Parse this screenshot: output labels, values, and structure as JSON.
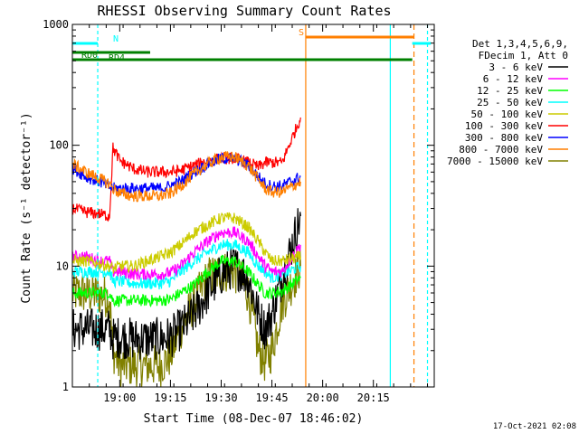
{
  "chart_data": {
    "type": "line",
    "title": "RHESSI Observing Summary Count Rates",
    "xlabel": "Start Time (08-Dec-07 18:46:02)",
    "ylabel": "Count Rate (s⁻¹ detector⁻¹)",
    "yscale": "log",
    "ylim": [
      1,
      1000
    ],
    "xlim_minutes": [
      0,
      107
    ],
    "x_ticks": [
      {
        "label": "19:00",
        "minutes": 14
      },
      {
        "label": "19:15",
        "minutes": 29
      },
      {
        "label": "19:30",
        "minutes": 44
      },
      {
        "label": "19:45",
        "minutes": 59
      },
      {
        "label": "20:00",
        "minutes": 74
      },
      {
        "label": "20:15",
        "minutes": 89
      }
    ],
    "y_ticks": [
      {
        "label": "1",
        "value": 1
      },
      {
        "label": "10",
        "value": 10
      },
      {
        "label": "100",
        "value": 100
      },
      {
        "label": "1000",
        "value": 1000
      }
    ],
    "legend_header": [
      "Det 1,3,4,5,6,9,",
      "FDecim 1, Att 0"
    ],
    "legend_position": "right",
    "series": [
      {
        "name": "3 - 6 keV",
        "color": "#000000",
        "x": [
          0,
          4,
          8,
          11,
          12,
          14,
          18,
          22,
          26,
          29,
          32,
          36,
          40,
          44,
          48,
          52,
          55,
          57,
          59,
          62,
          67.5
        ],
        "y": [
          3,
          3,
          3,
          3,
          2.5,
          2.6,
          2.5,
          2.5,
          2.5,
          2.6,
          3,
          4,
          6,
          8.5,
          10,
          8,
          4,
          3,
          4,
          8,
          26
        ]
      },
      {
        "name": "6 - 12 keV",
        "color": "#ff00ff",
        "x": [
          0,
          4,
          8,
          11,
          12,
          14,
          18,
          22,
          26,
          29,
          32,
          36,
          40,
          44,
          48,
          52,
          55,
          57,
          59,
          62,
          67.5
        ],
        "y": [
          12,
          12,
          11,
          11,
          9,
          9,
          8.6,
          8.6,
          8.6,
          8.8,
          10,
          13,
          16,
          19,
          19,
          16,
          12,
          10,
          9,
          9,
          15
        ]
      },
      {
        "name": "12 - 25 keV",
        "color": "#00ff00",
        "x": [
          0,
          4,
          8,
          11,
          12,
          14,
          18,
          22,
          26,
          29,
          32,
          36,
          40,
          44,
          48,
          52,
          55,
          57,
          59,
          62,
          67.5
        ],
        "y": [
          6,
          6,
          6,
          6,
          5.2,
          5.2,
          5.2,
          5.2,
          5.2,
          5.3,
          6,
          7,
          9,
          11,
          11,
          9,
          7,
          6,
          6,
          6.2,
          8
        ]
      },
      {
        "name": "25 - 50 keV",
        "color": "#00ffff",
        "x": [
          0,
          4,
          8,
          11,
          12,
          14,
          18,
          22,
          26,
          29,
          32,
          36,
          40,
          44,
          48,
          52,
          55,
          57,
          59,
          62,
          67.5
        ],
        "y": [
          9,
          9,
          9,
          9,
          7.5,
          7.5,
          7.2,
          7.2,
          7.2,
          7.5,
          9,
          11,
          13,
          15,
          15,
          13,
          10,
          9,
          8,
          8.5,
          10
        ]
      },
      {
        "name": "50 - 100 keV",
        "color": "#cccc00",
        "x": [
          0,
          4,
          8,
          11,
          12,
          14,
          18,
          22,
          26,
          29,
          32,
          36,
          40,
          44,
          48,
          52,
          55,
          57,
          59,
          62,
          67.5
        ],
        "y": [
          11,
          11,
          10.5,
          10,
          9.5,
          10,
          10,
          11,
          12,
          13,
          15,
          19,
          22,
          25,
          25,
          21,
          16,
          13,
          11,
          11,
          12
        ]
      },
      {
        "name": "100 - 300 keV",
        "color": "#ff0000",
        "x": [
          0,
          4,
          8,
          11,
          12,
          14,
          18,
          22,
          26,
          29,
          32,
          36,
          40,
          44,
          48,
          52,
          55,
          57,
          59,
          62,
          67.5
        ],
        "y": [
          30,
          28,
          27,
          26,
          95,
          75,
          64,
          60,
          60,
          60,
          62,
          68,
          74,
          78,
          78,
          72,
          66,
          72,
          72,
          72,
          170
        ]
      },
      {
        "name": "300 - 800 keV",
        "color": "#0000ff",
        "x": [
          0,
          4,
          8,
          11,
          12,
          14,
          18,
          22,
          26,
          29,
          32,
          36,
          40,
          44,
          48,
          52,
          55,
          57,
          59,
          62,
          67.5
        ],
        "y": [
          65,
          55,
          50,
          45,
          44,
          44,
          44,
          44,
          44,
          46,
          50,
          60,
          70,
          78,
          78,
          68,
          55,
          48,
          46,
          46,
          55
        ]
      },
      {
        "name": "800 - 7000 keV",
        "color": "#ff7f00",
        "x": [
          0,
          4,
          8,
          11,
          12,
          14,
          18,
          22,
          26,
          29,
          32,
          36,
          40,
          44,
          48,
          52,
          55,
          57,
          59,
          62,
          67.5
        ],
        "y": [
          70,
          60,
          53,
          48,
          44,
          40,
          38,
          38,
          38,
          40,
          46,
          58,
          70,
          80,
          80,
          68,
          52,
          44,
          41,
          41,
          50
        ]
      },
      {
        "name": "7000 - 15000 keV",
        "color": "#808000",
        "x": [
          0,
          4,
          8,
          11,
          12,
          14,
          18,
          22,
          26,
          29,
          32,
          36,
          40,
          44,
          48,
          52,
          55,
          57,
          59,
          62,
          67.5
        ],
        "y": [
          6,
          6,
          5.8,
          5.5,
          2,
          1.5,
          1.5,
          1.5,
          1.5,
          1.8,
          3,
          5,
          8,
          9,
          9,
          6,
          2,
          1.6,
          2,
          5,
          10
        ]
      }
    ],
    "status_bars": [
      {
        "label": "RD0",
        "color": "#008000",
        "segments_minutes": [
          [
            0,
            100.5
          ]
        ]
      },
      {
        "label": "RD4",
        "color": "#008000",
        "segments_minutes": [
          [
            0,
            23
          ]
        ]
      },
      {
        "label": "N",
        "color": "#00ffff",
        "segments_minutes": [
          [
            0,
            7.5
          ],
          [
            100.5,
            106
          ]
        ]
      },
      {
        "label": "S",
        "color": "#ff7f00",
        "segments_minutes": [
          [
            69,
            101
          ]
        ]
      }
    ],
    "grid": false
  },
  "footer_date": "17-Oct-2021 02:08"
}
